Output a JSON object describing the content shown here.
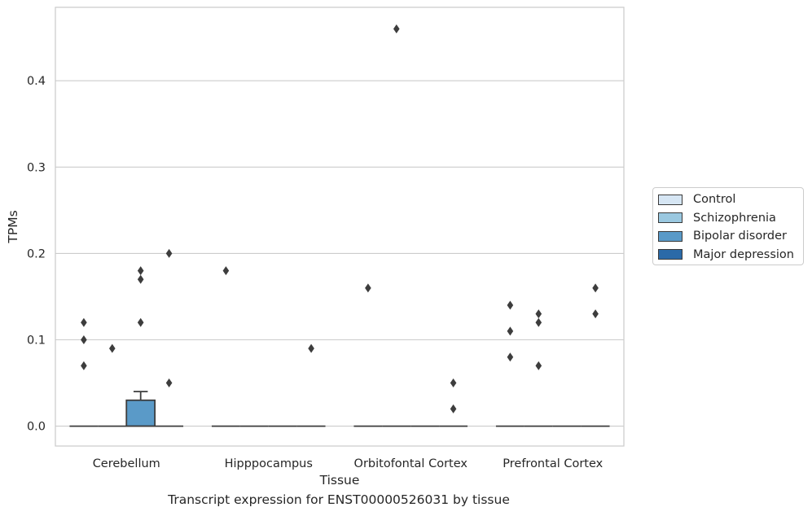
{
  "chart_data": {
    "type": "box",
    "xlabel": "Tissue",
    "ylabel": "TPMs",
    "caption": "Transcript expression for ENST00000526031 by tissue",
    "ylim": [
      -0.023,
      0.485
    ],
    "yticks": [
      0.0,
      0.1,
      0.2,
      0.3,
      0.4
    ],
    "ytick_labels": [
      "0.0",
      "0.1",
      "0.2",
      "0.3",
      "0.4"
    ],
    "grid": "horizontal",
    "legend_position": "right",
    "categories": [
      "Cerebellum",
      "Hipppocampus",
      "Orbitofontal Cortex",
      "Prefrontal Cortex"
    ],
    "series": [
      {
        "name": "Control",
        "color": "#d6e6f4",
        "boxes": [
          {
            "q1": 0,
            "median": 0,
            "q3": 0,
            "whisker_low": 0,
            "whisker_high": 0,
            "outliers": [
              0.07,
              0.1,
              0.12
            ]
          },
          {
            "q1": 0,
            "median": 0,
            "q3": 0,
            "whisker_low": 0,
            "whisker_high": 0,
            "outliers": [
              0.18
            ]
          },
          {
            "q1": 0,
            "median": 0,
            "q3": 0,
            "whisker_low": 0,
            "whisker_high": 0,
            "outliers": [
              0.16
            ]
          },
          {
            "q1": 0,
            "median": 0,
            "q3": 0,
            "whisker_low": 0,
            "whisker_high": 0,
            "outliers": [
              0.08,
              0.11,
              0.14
            ]
          }
        ]
      },
      {
        "name": "Schizophrenia",
        "color": "#9ac8e0",
        "boxes": [
          {
            "q1": 0,
            "median": 0,
            "q3": 0,
            "whisker_low": 0,
            "whisker_high": 0,
            "outliers": [
              0.09
            ]
          },
          {
            "q1": 0,
            "median": 0,
            "q3": 0,
            "whisker_low": 0,
            "whisker_high": 0,
            "outliers": []
          },
          {
            "q1": 0,
            "median": 0,
            "q3": 0,
            "whisker_low": 0,
            "whisker_high": 0,
            "outliers": [
              0.46
            ]
          },
          {
            "q1": 0,
            "median": 0,
            "q3": 0,
            "whisker_low": 0,
            "whisker_high": 0,
            "outliers": [
              0.07,
              0.12,
              0.13
            ]
          }
        ]
      },
      {
        "name": "Bipolar disorder",
        "color": "#5a9ac8",
        "boxes": [
          {
            "q1": 0,
            "median": 0,
            "q3": 0.03,
            "whisker_low": 0,
            "whisker_high": 0.04,
            "outliers": [
              0.12,
              0.17,
              0.18
            ]
          },
          {
            "q1": 0,
            "median": 0,
            "q3": 0,
            "whisker_low": 0,
            "whisker_high": 0,
            "outliers": []
          },
          {
            "q1": 0,
            "median": 0,
            "q3": 0,
            "whisker_low": 0,
            "whisker_high": 0,
            "outliers": []
          },
          {
            "q1": 0,
            "median": 0,
            "q3": 0,
            "whisker_low": 0,
            "whisker_high": 0,
            "outliers": []
          }
        ]
      },
      {
        "name": "Major depression",
        "color": "#2b6aa8",
        "boxes": [
          {
            "q1": 0,
            "median": 0,
            "q3": 0,
            "whisker_low": 0,
            "whisker_high": 0,
            "outliers": [
              0.05,
              0.2
            ]
          },
          {
            "q1": 0,
            "median": 0,
            "q3": 0,
            "whisker_low": 0,
            "whisker_high": 0,
            "outliers": [
              0.09
            ]
          },
          {
            "q1": 0,
            "median": 0,
            "q3": 0,
            "whisker_low": 0,
            "whisker_high": 0,
            "outliers": [
              0.02,
              0.05
            ]
          },
          {
            "q1": 0,
            "median": 0,
            "q3": 0,
            "whisker_low": 0,
            "whisker_high": 0,
            "outliers": [
              0.13,
              0.16
            ]
          }
        ]
      }
    ]
  }
}
